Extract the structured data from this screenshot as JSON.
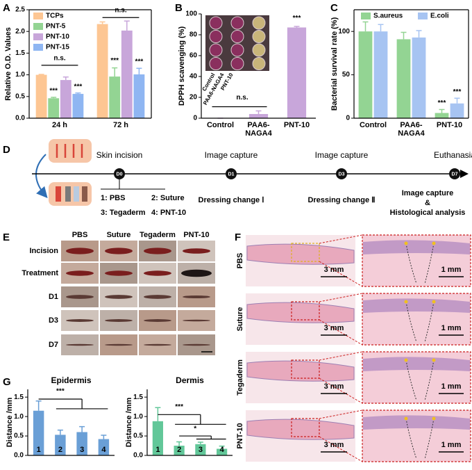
{
  "panel_labels": [
    "A",
    "B",
    "C",
    "D",
    "E",
    "F",
    "G"
  ],
  "chart_data": [
    {
      "type": "bar",
      "ylabel": "Relative O.D. Values",
      "categories": [
        "24 h",
        "72 h"
      ],
      "series": [
        {
          "name": "TCPs",
          "color": "#fdc693",
          "values": [
            1.0,
            2.17
          ],
          "errors": [
            0.01,
            0.05
          ]
        },
        {
          "name": "PNT-5",
          "color": "#93d493",
          "values": [
            0.46,
            0.96
          ],
          "errors": [
            0.02,
            0.2
          ]
        },
        {
          "name": "PNT-10",
          "color": "#c8a6da",
          "values": [
            0.88,
            2.02
          ],
          "errors": [
            0.07,
            0.22
          ]
        },
        {
          "name": "PNT-15",
          "color": "#8fb6f2",
          "values": [
            0.56,
            1.01
          ],
          "errors": [
            0.02,
            0.14
          ]
        }
      ],
      "ylim": [
        0,
        2.5
      ],
      "yticks": [
        {
          "value": 0,
          "label": "0.0"
        },
        0.5,
        {
          "value": 1,
          "label": "1.0"
        },
        1.5,
        {
          "value": 2,
          "label": "2.0"
        },
        2.5
      ],
      "legend": "upper left",
      "annotations": [
        "n.s.",
        "***",
        "***",
        "n.s.",
        "***",
        "***"
      ]
    },
    {
      "type": "bar",
      "ylabel": "DPPH scavenging (%)",
      "categories": [
        "Control",
        "PAA6-NAGA4",
        "PNT-10"
      ],
      "values": [
        0,
        4,
        87
      ],
      "errors": [
        0,
        3,
        1
      ],
      "color": "#c8a6da",
      "ylim": [
        0,
        100
      ],
      "yticks": [
        0,
        20,
        40,
        60,
        80,
        100
      ],
      "inset_labels": [
        "Control",
        "PAA6-NAGA4",
        "PNT-10"
      ],
      "annotations": [
        "n.s.",
        "***"
      ]
    },
    {
      "type": "bar",
      "ylabel": "Bacterial survival rate (%)",
      "categories": [
        "Control",
        "PAA6-NAGA4",
        "PNT-10"
      ],
      "series": [
        {
          "name": "S.aureus",
          "color": "#93d493",
          "values": [
            100,
            91,
            6
          ],
          "errors": [
            11,
            8,
            4
          ]
        },
        {
          "name": "E.coli",
          "color": "#a7c4f2",
          "values": [
            100,
            93,
            17
          ],
          "errors": [
            8,
            8,
            6
          ]
        }
      ],
      "ylim": [
        0,
        125
      ],
      "yticks": [
        0,
        50,
        100
      ],
      "legend": "upper center",
      "annotations": [
        "***",
        "***"
      ]
    },
    {
      "type": "bar",
      "title": "Epidermis",
      "ylabel": "Distance /mm",
      "categories": [
        "1",
        "2",
        "3",
        "4"
      ],
      "values": [
        1.15,
        0.53,
        0.6,
        0.42
      ],
      "errors": [
        0.25,
        0.12,
        0.14,
        0.1
      ],
      "color": "#6a9fd6",
      "ylim": [
        0,
        1.7
      ],
      "yticks": [
        {
          "value": 0,
          "label": "0.0"
        },
        0.5,
        {
          "value": 1,
          "label": "1.0"
        },
        1.5
      ],
      "annotations": [
        "***"
      ]
    },
    {
      "type": "bar",
      "title": "Dermis",
      "ylabel": "Distance /mm",
      "categories": [
        "1",
        "2",
        "3",
        "4"
      ],
      "values": [
        0.88,
        0.25,
        0.29,
        0.17
      ],
      "errors": [
        0.35,
        0.1,
        0.05,
        0.07
      ],
      "color": "#62c799",
      "ylim": [
        0,
        1.7
      ],
      "yticks": [
        {
          "value": 0,
          "label": "0.0"
        },
        0.5,
        {
          "value": 1,
          "label": "1.0"
        },
        1.5
      ],
      "annotations": [
        "***",
        "*"
      ]
    }
  ],
  "timeline": {
    "events": [
      {
        "day": "D0",
        "label": "Skin incision"
      },
      {
        "day": "D1",
        "label": "Image capture"
      },
      {
        "day": "D3",
        "label": "Image capture"
      },
      {
        "day": "D7",
        "label": "Euthanasia"
      }
    ],
    "groups": [
      "1: PBS",
      "2: Suture",
      "3: Tegaderm",
      "4: PNT-10"
    ],
    "notes": [
      "Dressing change Ⅰ",
      "Dressing change Ⅱ",
      "Image capture",
      "&",
      "Histological analysis"
    ]
  },
  "wound_photos": {
    "columns": [
      "PBS",
      "Suture",
      "Tegaderm",
      "PNT-10"
    ],
    "rows": [
      "Incision",
      "Treatment",
      "D1",
      "D3",
      "D7"
    ]
  },
  "histology": {
    "rows": [
      "PBS",
      "Suture",
      "Tegaderm",
      "PNT-10"
    ],
    "scale_bars": [
      "3 mm",
      "1 mm"
    ]
  }
}
